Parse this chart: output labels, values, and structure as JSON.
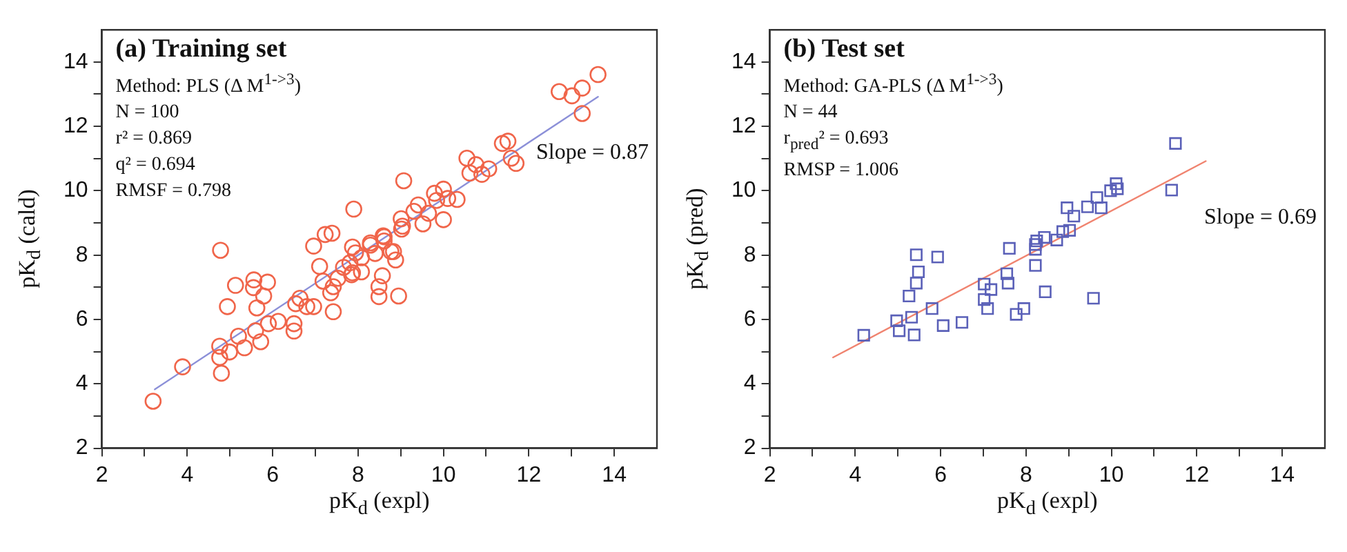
{
  "chart_data": [
    {
      "type": "scatter",
      "title": "(a) Training set",
      "xlabel": "pK$_{d}$ (expl)",
      "ylabel": "pK$_{d}$ (cald)",
      "annotations": [
        "Method: PLS (Δ M$^{1->3}$)",
        "N = 100",
        "r² = 0.869",
        "q² = 0.694",
        "RMSF = 0.798",
        "Slope = 0.87"
      ],
      "xlim": [
        2,
        15
      ],
      "ylim": [
        2,
        15
      ],
      "xticks": [
        2,
        {
          "value": 3,
          "label": null
        },
        4,
        {
          "value": 5,
          "label": null
        },
        6,
        {
          "value": 7,
          "label": null
        },
        8,
        {
          "value": 9,
          "label": null
        },
        10,
        {
          "value": 11,
          "label": null
        },
        12,
        {
          "value": 13,
          "label": null
        },
        14
      ],
      "yticks": [
        2,
        {
          "value": 3,
          "label": null
        },
        4,
        {
          "value": 5,
          "label": null
        },
        6,
        {
          "value": 7,
          "label": null
        },
        8,
        {
          "value": 9,
          "label": null
        },
        10,
        {
          "value": 11,
          "label": null
        },
        12,
        {
          "value": 13,
          "label": null
        },
        14
      ],
      "grid": false,
      "legend": false,
      "marker": "circle",
      "series": [
        {
          "color": "#f0654a",
          "x": [
            3.2,
            3.89,
            4.78,
            4.76,
            4.76,
            4.8,
            4.99,
            4.94,
            5.13,
            5.2,
            5.34,
            5.56,
            5.55,
            5.6,
            5.63,
            5.79,
            5.72,
            5.88,
            5.9,
            6.13,
            6.5,
            6.5,
            6.64,
            6.54,
            6.8,
            6.96,
            6.96,
            7.1,
            7.18,
            7.23,
            7.39,
            7.36,
            7.42,
            7.42,
            7.53,
            7.66,
            7.81,
            7.87,
            7.85,
            7.94,
            8.08,
            8.08,
            8.29,
            8.4,
            8.59,
            8.61,
            8.49,
            8.49,
            8.57,
            8.77,
            8.88,
            8.95,
            9.02,
            8.29,
            8.61,
            8.83,
            7.87,
            7.9,
            9.07,
            9.01,
            9.04,
            9.31,
            9.41,
            9.52,
            9.65,
            9.79,
            9.84,
            10.0,
            10.0,
            10.1,
            10.32,
            10.55,
            10.62,
            10.76,
            10.9,
            11.06,
            11.38,
            11.51,
            11.59,
            11.7,
            12.71,
            13.01,
            13.25,
            13.25,
            13.62
          ],
          "values": [
            3.46,
            4.53,
            8.15,
            5.17,
            4.82,
            4.33,
            4.99,
            6.4,
            7.06,
            5.48,
            5.12,
            7.23,
            6.99,
            5.65,
            6.36,
            6.73,
            5.31,
            7.16,
            5.87,
            5.94,
            5.87,
            5.64,
            6.66,
            6.49,
            6.4,
            6.4,
            8.28,
            7.65,
            7.19,
            8.64,
            8.68,
            6.83,
            6.24,
            7.02,
            7.28,
            7.62,
            7.76,
            8.25,
            7.39,
            8.07,
            7.48,
            7.92,
            8.31,
            8.05,
            8.6,
            8.44,
            7.02,
            6.71,
            7.36,
            8.11,
            7.85,
            6.73,
            8.81,
            8.38,
            8.57,
            8.11,
            7.45,
            9.43,
            10.31,
            9.13,
            8.9,
            9.36,
            9.56,
            8.97,
            9.3,
            9.92,
            9.7,
            10.05,
            9.1,
            9.76,
            9.73,
            11.01,
            10.55,
            10.81,
            10.51,
            10.68,
            11.47,
            11.54,
            11.01,
            10.85,
            13.08,
            12.95,
            13.19,
            12.4,
            13.61
          ]
        },
        {
          "type": "line",
          "marker": "none",
          "color": "#8c90d8",
          "x": [
            3.24,
            13.62
          ],
          "values": [
            3.83,
            12.92
          ]
        }
      ]
    },
    {
      "type": "scatter",
      "title": "(b) Test set",
      "xlabel": "pK$_{d}$ (expl)",
      "ylabel": "pK$_{d}$ (pred)",
      "annotations": [
        "Method: GA-PLS (Δ M$^{1->3}$)",
        "N = 44",
        "r$_{pred}$² = 0.693",
        "RMSP = 1.006",
        "Slope = 0.69"
      ],
      "xlim": [
        2,
        15
      ],
      "ylim": [
        2,
        15
      ],
      "xticks": [
        2,
        {
          "value": 3,
          "label": null
        },
        4,
        {
          "value": 5,
          "label": null
        },
        6,
        {
          "value": 7,
          "label": null
        },
        8,
        {
          "value": 9,
          "label": null
        },
        10,
        {
          "value": 11,
          "label": null
        },
        12,
        {
          "value": 13,
          "label": null
        },
        14
      ],
      "yticks": [
        2,
        {
          "value": 3,
          "label": null
        },
        4,
        {
          "value": 5,
          "label": null
        },
        6,
        {
          "value": 7,
          "label": null
        },
        8,
        {
          "value": 9,
          "label": null
        },
        10,
        {
          "value": 11,
          "label": null
        },
        12,
        {
          "value": 13,
          "label": null
        },
        14
      ],
      "grid": false,
      "legend": false,
      "marker": "square",
      "series": [
        {
          "color": "#5a60b8",
          "x": [
            4.2,
            4.97,
            5.03,
            5.32,
            5.26,
            5.38,
            5.43,
            5.48,
            5.43,
            5.93,
            5.8,
            6.06,
            6.5,
            7.02,
            7.02,
            7.18,
            7.1,
            7.55,
            7.58,
            7.61,
            7.77,
            7.95,
            8.22,
            8.22,
            8.25,
            8.45,
            8.43,
            8.72,
            9.58,
            8.86,
            9.02,
            8.96,
            9.12,
            9.44,
            9.66,
            9.76,
            9.98,
            10.11,
            10.14,
            11.41,
            11.5,
            8.22
          ],
          "values": [
            5.51,
            5.96,
            5.65,
            6.07,
            6.73,
            5.52,
            7.13,
            7.48,
            8.01,
            7.94,
            6.34,
            5.81,
            5.91,
            7.1,
            6.62,
            6.93,
            6.34,
            7.42,
            7.13,
            8.21,
            6.16,
            6.34,
            7.68,
            8.18,
            8.44,
            6.86,
            8.55,
            8.47,
            6.66,
            8.73,
            8.77,
            9.47,
            9.21,
            9.5,
            9.79,
            9.47,
            10.0,
            10.22,
            10.06,
            10.02,
            11.47,
            8.33
          ]
        },
        {
          "type": "line",
          "marker": "none",
          "color": "#f08470",
          "x": [
            3.48,
            12.21
          ],
          "values": [
            4.82,
            10.92
          ]
        }
      ]
    }
  ]
}
